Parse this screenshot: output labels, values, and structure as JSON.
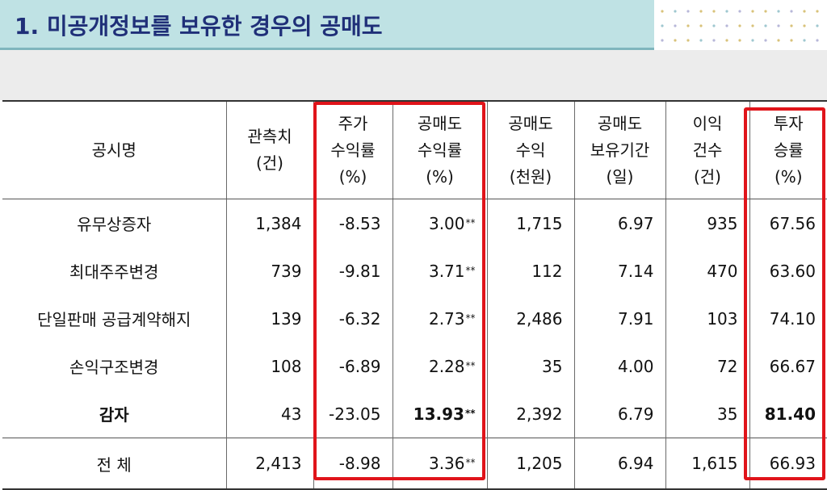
{
  "title": "1. 미공개정보를 보유한 경우의 공매도",
  "colors": {
    "title_bg": "#bfe2e4",
    "title_text": "#1f2f78",
    "highlight": "#e0141a"
  },
  "headers": [
    [
      "공시명"
    ],
    [
      "관측치",
      "(건)"
    ],
    [
      "주가",
      "수익률",
      "(%)"
    ],
    [
      "공매도",
      "수익률",
      "(%)"
    ],
    [
      "공매도",
      "수익",
      "(천원)"
    ],
    [
      "공매도",
      "보유기간",
      "(일)"
    ],
    [
      "이익",
      "건수",
      "(건)"
    ],
    [
      "투자",
      "승률",
      "(%)"
    ]
  ],
  "rows": [
    {
      "name": "유무상증자",
      "count": "1,384",
      "stock_return": "-8.53",
      "short_return": "3.00",
      "sig": "**",
      "profit": "1,715",
      "holding": "6.97",
      "wins": "935",
      "win_rate": "67.56"
    },
    {
      "name": "최대주주변경",
      "count": "739",
      "stock_return": "-9.81",
      "short_return": "3.71",
      "sig": "**",
      "profit": "112",
      "holding": "7.14",
      "wins": "470",
      "win_rate": "63.60"
    },
    {
      "name": "단일판매 공급계약해지",
      "count": "139",
      "stock_return": "-6.32",
      "short_return": "2.73",
      "sig": "**",
      "profit": "2,486",
      "holding": "7.91",
      "wins": "103",
      "win_rate": "74.10"
    },
    {
      "name": "손익구조변경",
      "count": "108",
      "stock_return": "-6.89",
      "short_return": "2.28",
      "sig": "**",
      "profit": "35",
      "holding": "4.00",
      "wins": "72",
      "win_rate": "66.67"
    },
    {
      "name": "감자",
      "count": "43",
      "stock_return": "-23.05",
      "short_return": "13.93",
      "sig": "**",
      "profit": "2,392",
      "holding": "6.79",
      "wins": "35",
      "win_rate": "81.40"
    }
  ],
  "total": {
    "name": "전 체",
    "count": "2,413",
    "stock_return": "-8.98",
    "short_return": "3.36",
    "sig": "**",
    "profit": "1,205",
    "holding": "6.94",
    "wins": "1,615",
    "win_rate": "66.93"
  }
}
